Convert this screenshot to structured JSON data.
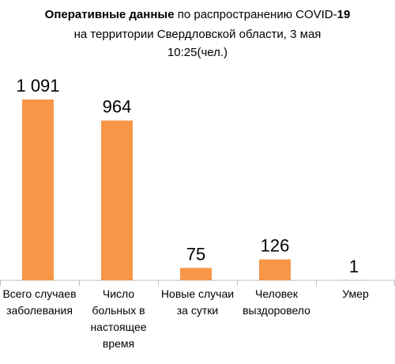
{
  "chart_data": {
    "type": "bar",
    "title_lines": [
      [
        {
          "text": "Оперативные данные",
          "bold": true
        },
        {
          "text": " по распространению COVID-",
          "bold": false
        },
        {
          "text": "19",
          "bold": true
        }
      ],
      [
        {
          "text": "на территории Свердловской области, 3 мая",
          "bold": false
        }
      ],
      [
        {
          "text": "10:25(чел.)",
          "bold": false
        }
      ]
    ],
    "categories": [
      "Всего случаев заболевания",
      "Число больных в настоящее время",
      "Новые случаи за сутки",
      "Человек выздоровело",
      "Умер"
    ],
    "values": [
      1091,
      964,
      75,
      126,
      1
    ],
    "value_labels": [
      "1 091",
      "964",
      "75",
      "126",
      "1"
    ],
    "color": "#F79646"
  }
}
